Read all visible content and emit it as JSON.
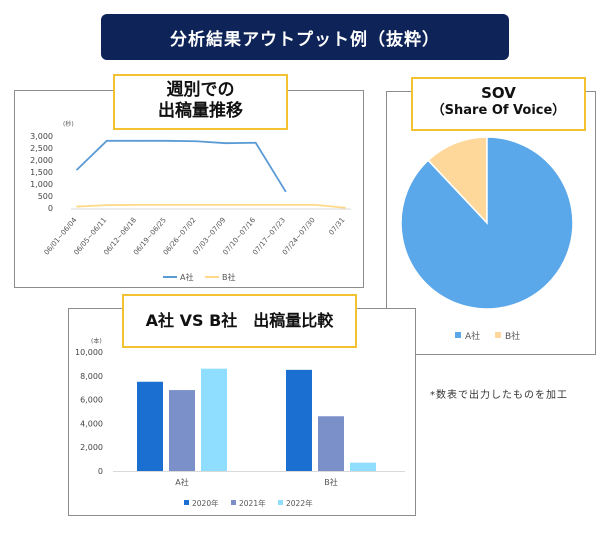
{
  "banner": {
    "title": "分析結果アウトプット例（抜粋）"
  },
  "note": "*数表で出力したものを加工",
  "colors": {
    "banner_bg": "#0e2458",
    "label_border": "#f2c233"
  },
  "chart_data": [
    {
      "type": "line",
      "title_line1": "週別での",
      "title_line2": "出稿量推移",
      "unit": "(秒)",
      "yticks": [
        "3,000",
        "2,500",
        "2,000",
        "1,500",
        "1,000",
        "500",
        "0"
      ],
      "ylim": [
        0,
        3000
      ],
      "categories": [
        "06/01~06/04",
        "06/05~06/11",
        "06/12~06/18",
        "06/19~06/25",
        "06/26~07/02",
        "07/03~07/09",
        "07/10~07/16",
        "07/17~07/23",
        "07/24~07/30",
        "07/31"
      ],
      "series": [
        {
          "name": "A社",
          "color": "#5b9bd5",
          "values": [
            1600,
            2800,
            2800,
            2800,
            2780,
            2700,
            2720,
            700,
            null,
            null
          ]
        },
        {
          "name": "B社",
          "color": "#ffd98a",
          "values": [
            60,
            120,
            130,
            130,
            130,
            130,
            130,
            130,
            130,
            10
          ]
        }
      ]
    },
    {
      "type": "pie",
      "title_line1": "SOV",
      "title_line2": "（Share Of Voice）",
      "slices": [
        {
          "name": "A社",
          "value": 88,
          "color": "#5aa7ea"
        },
        {
          "name": "B社",
          "value": 12,
          "color": "#fdd89a"
        }
      ]
    },
    {
      "type": "bar",
      "title": "A社 VS B社　出稿量比較",
      "unit": "(本)",
      "yticks": [
        "10,000",
        "8,000",
        "6,000",
        "4,000",
        "2,000",
        "0"
      ],
      "ylim": [
        0,
        10000
      ],
      "categories": [
        "A社",
        "B社"
      ],
      "series": [
        {
          "name": "2020年",
          "color": "#1a6fd0",
          "values": [
            7500,
            8500
          ]
        },
        {
          "name": "2021年",
          "color": "#7b8fc8",
          "values": [
            6800,
            4600
          ]
        },
        {
          "name": "2022年",
          "color": "#90deff",
          "values": [
            8600,
            700
          ]
        }
      ]
    }
  ]
}
